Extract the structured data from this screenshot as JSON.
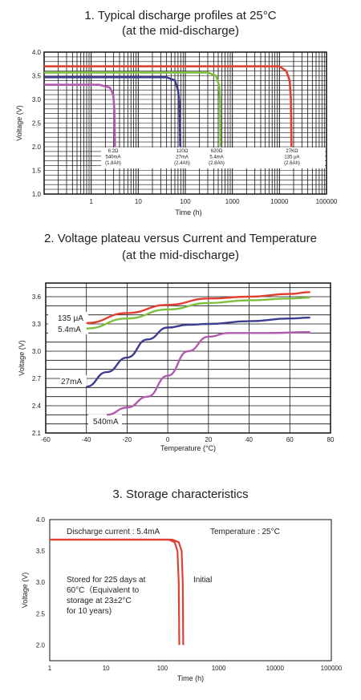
{
  "chart_data": [
    {
      "type": "line",
      "title": [
        "1. Typical discharge profiles at 25°C",
        "(at  the mid-discharge)"
      ],
      "xlabel": "Time (h)",
      "ylabel": "Voltage (V)",
      "xscale": "log",
      "xlim": [
        0.1,
        100000
      ],
      "ylim": [
        1.0,
        4.0
      ],
      "xticks": [
        "1",
        "10",
        "100",
        "1000",
        "10000",
        "100000"
      ],
      "yticks": [
        "1.0",
        "1.5",
        "2.0",
        "2.5",
        "3.0",
        "3.5",
        "4.0"
      ],
      "grid": true,
      "series": [
        {
          "label": [
            "6.2Ω",
            "540mA",
            "(1.8Ah)"
          ],
          "color": "#b05bb0",
          "points": [
            [
              0.1,
              3.31
            ],
            [
              1.5,
              3.31
            ],
            [
              2.5,
              3.25
            ],
            [
              2.95,
              3.1
            ],
            [
              3.1,
              2.8
            ],
            [
              3.2,
              2.0
            ]
          ]
        },
        {
          "label": [
            "120Ω",
            "27mA",
            "(2.4Ah)"
          ],
          "color": "#3d3d8f",
          "points": [
            [
              0.1,
              3.47
            ],
            [
              40,
              3.47
            ],
            [
              60,
              3.4
            ],
            [
              70,
              3.2
            ],
            [
              75,
              2.9
            ],
            [
              78,
              2.0
            ]
          ]
        },
        {
          "label": [
            "620Ω",
            "5.4mA",
            "(2.8Ah)"
          ],
          "color": "#7fbf3f",
          "points": [
            [
              0.1,
              3.57
            ],
            [
              300,
              3.57
            ],
            [
              450,
              3.5
            ],
            [
              520,
              3.3
            ],
            [
              550,
              3.0
            ],
            [
              560,
              2.0
            ]
          ]
        },
        {
          "label": [
            "27KΩ",
            "135 μA",
            "(2.6Ah)"
          ],
          "color": "#e04030",
          "points": [
            [
              0.1,
              3.7
            ],
            [
              10000,
              3.7
            ],
            [
              14000,
              3.6
            ],
            [
              16500,
              3.4
            ],
            [
              17500,
              3.0
            ],
            [
              18000,
              2.0
            ]
          ]
        }
      ]
    },
    {
      "type": "line",
      "title": [
        "2. Voltage plateau versus Current and Temperature",
        "(at the mid-discharge)"
      ],
      "xlabel": "Temperature (°C)",
      "ylabel": "Voltage (V)",
      "xlim": [
        -60,
        80
      ],
      "ylim": [
        2.1,
        3.75
      ],
      "xticks": [
        "-60",
        "-40",
        "-20",
        "0",
        "20",
        "40",
        "60",
        "80"
      ],
      "yticks": [
        "2.1",
        "2.4",
        "2.7",
        "3.0",
        "3.3",
        "3.6"
      ],
      "grid": true,
      "series": [
        {
          "label": "135 μA",
          "color": "#e04030",
          "points": [
            [
              -40,
              3.31
            ],
            [
              -20,
              3.42
            ],
            [
              0,
              3.51
            ],
            [
              20,
              3.58
            ],
            [
              40,
              3.6
            ],
            [
              60,
              3.63
            ],
            [
              70,
              3.65
            ]
          ]
        },
        {
          "label": "5.4mA",
          "color": "#7fbf3f",
          "points": [
            [
              -40,
              3.25
            ],
            [
              -20,
              3.36
            ],
            [
              0,
              3.46
            ],
            [
              20,
              3.53
            ],
            [
              40,
              3.56
            ],
            [
              60,
              3.58
            ],
            [
              70,
              3.59
            ]
          ]
        },
        {
          "label": "27mA",
          "color": "#3d3d8f",
          "points": [
            [
              -40,
              2.61
            ],
            [
              -30,
              2.77
            ],
            [
              -20,
              2.93
            ],
            [
              -10,
              3.13
            ],
            [
              0,
              3.26
            ],
            [
              10,
              3.29
            ],
            [
              20,
              3.3
            ],
            [
              40,
              3.33
            ],
            [
              60,
              3.36
            ],
            [
              70,
              3.37
            ]
          ]
        },
        {
          "label": "540mA",
          "color": "#b05bb0",
          "points": [
            [
              -30,
              2.3
            ],
            [
              -20,
              2.38
            ],
            [
              -10,
              2.5
            ],
            [
              0,
              2.73
            ],
            [
              10,
              3.0
            ],
            [
              20,
              3.16
            ],
            [
              30,
              3.2
            ],
            [
              50,
              3.2
            ],
            [
              70,
              3.21
            ]
          ]
        }
      ]
    },
    {
      "type": "line",
      "title": [
        "3. Storage characteristics"
      ],
      "xlabel": "Time (h)",
      "ylabel": "Voltage (V)",
      "xscale": "log",
      "xlim": [
        1,
        100000
      ],
      "ylim": [
        1.75,
        4.0
      ],
      "xticks": [
        "1",
        "10",
        "100",
        "1000",
        "10000",
        "100000"
      ],
      "yticks": [
        "2.0",
        "2.5",
        "3.0",
        "3.5",
        "4.0"
      ],
      "grid": false,
      "annotations": {
        "discharge_current": "Discharge current : 5.4mA",
        "temperature": "Temperature : 25°C",
        "stored": [
          "Stored for 225 days at",
          "60°C（Equivalent to",
          "storage at 23±2°C",
          "for 10 years)"
        ],
        "initial": "Initial"
      },
      "series": [
        {
          "label": "Stored",
          "color": "#e04030",
          "points": [
            [
              1,
              3.68
            ],
            [
              130,
              3.68
            ],
            [
              165,
              3.64
            ],
            [
              185,
              3.5
            ],
            [
              195,
              3.0
            ],
            [
              200,
              2.0
            ]
          ]
        },
        {
          "label": "Initial",
          "color": "#e04030",
          "points": [
            [
              1,
              3.68
            ],
            [
              150,
              3.68
            ],
            [
              195,
              3.64
            ],
            [
              220,
              3.5
            ],
            [
              230,
              3.0
            ],
            [
              235,
              2.0
            ]
          ]
        }
      ]
    }
  ]
}
